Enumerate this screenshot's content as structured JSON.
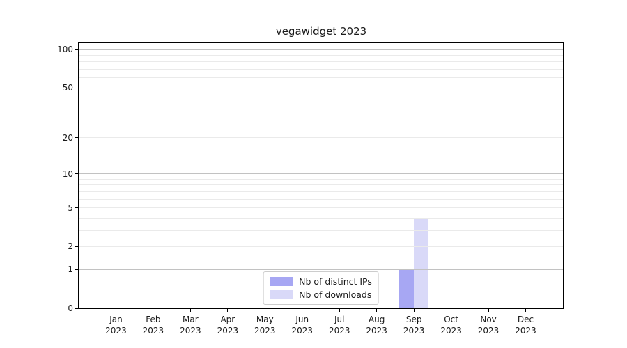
{
  "title": "vegawidget 2023",
  "colors": {
    "bar_distinct_ips": "#a7a7f3",
    "bar_downloads": "#d9d9f8",
    "grid_major": "#c2c2c2",
    "grid_minor": "#eaeaea",
    "axis_spine": "#000000",
    "legend_border": "#cccccc",
    "background": "#ffffff",
    "text": "#1a1a1a"
  },
  "chart_data": {
    "type": "bar",
    "title": "vegawidget 2023",
    "categories": [
      "Jan 2023",
      "Feb 2023",
      "Mar 2023",
      "Apr 2023",
      "May 2023",
      "Jun 2023",
      "Jul 2023",
      "Aug 2023",
      "Sep 2023",
      "Oct 2023",
      "Nov 2023",
      "Dec 2023"
    ],
    "x_tick_labels": [
      {
        "month": "Jan",
        "year": "2023"
      },
      {
        "month": "Feb",
        "year": "2023"
      },
      {
        "month": "Mar",
        "year": "2023"
      },
      {
        "month": "Apr",
        "year": "2023"
      },
      {
        "month": "May",
        "year": "2023"
      },
      {
        "month": "Jun",
        "year": "2023"
      },
      {
        "month": "Jul",
        "year": "2023"
      },
      {
        "month": "Aug",
        "year": "2023"
      },
      {
        "month": "Sep",
        "year": "2023"
      },
      {
        "month": "Oct",
        "year": "2023"
      },
      {
        "month": "Nov",
        "year": "2023"
      },
      {
        "month": "Dec",
        "year": "2023"
      }
    ],
    "series": [
      {
        "name": "Nb of distinct IPs",
        "color": "#a7a7f3",
        "values": [
          0,
          0,
          0,
          0,
          0,
          0,
          0,
          0,
          1,
          0,
          0,
          0
        ]
      },
      {
        "name": "Nb of downloads",
        "color": "#d9d9f8",
        "values": [
          0,
          0,
          0,
          0,
          0,
          0,
          0,
          0,
          4,
          0,
          0,
          0
        ]
      }
    ],
    "xlabel": "",
    "ylabel": "",
    "yscale": "log1p",
    "ylim": [
      0,
      110
    ],
    "y_tick_values": [
      100,
      50,
      20,
      10,
      5,
      2,
      1,
      0
    ],
    "y_tick_labels": [
      "100",
      "50",
      "20",
      "10",
      "5",
      "2",
      "1",
      "0"
    ],
    "y_major_gridlines": [
      1,
      10,
      100
    ],
    "y_minor_gridlines": [
      2,
      3,
      4,
      5,
      6,
      7,
      8,
      9,
      20,
      30,
      40,
      50,
      60,
      70,
      80,
      90
    ],
    "grid": true,
    "legend": {
      "position": "lower center",
      "entries": [
        "Nb of distinct IPs",
        "Nb of downloads"
      ]
    }
  }
}
